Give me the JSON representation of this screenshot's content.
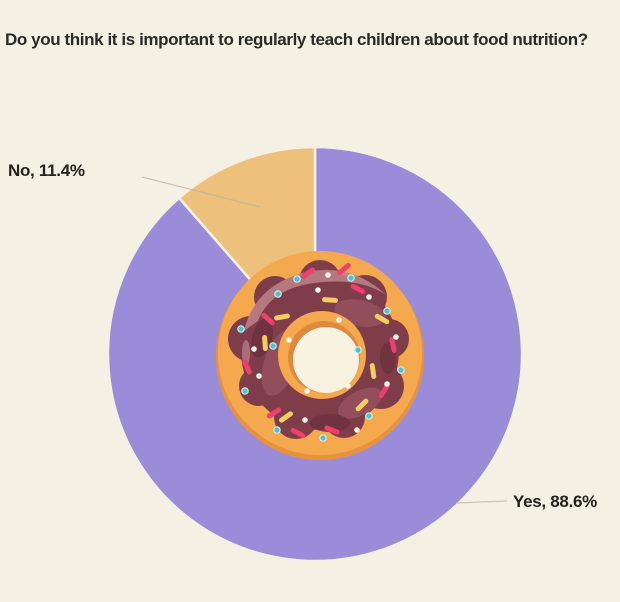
{
  "chart_data": {
    "type": "pie",
    "title": "Do you think it is important to regularly teach children about food nutrition?",
    "slices": [
      {
        "label": "Yes",
        "value": 88.6,
        "display_label": "Yes, 88.6%",
        "color": "#9b8cd9"
      },
      {
        "label": "No",
        "value": 11.4,
        "display_label": "No, 11.4%",
        "color": "#edc07b"
      }
    ],
    "start_angle": "top",
    "direction": "clockwise",
    "legend": "none",
    "background": "#f4f1e4",
    "slice_gap_color": "#f4f1e4",
    "leader_line_color": "#beb5a2",
    "center_illustration": "chocolate-frosted-donut-with-sprinkles",
    "illustration_colors": {
      "dough": "#f5a94f",
      "dough_shadow": "#e0883b",
      "frosting": "#7e3d49",
      "frosting_dark": "#6c323e",
      "frosting_light": "#95525d",
      "frosting_gloss": "#bb7e85",
      "hole_cream": "#f8f3e0",
      "sprinkle_pink": "#ee3f6e",
      "sprinkle_yellow": "#f3cd5f",
      "sprinkle_teal": "#4ec2cd",
      "sprinkle_white": "#fdf7ea"
    }
  }
}
